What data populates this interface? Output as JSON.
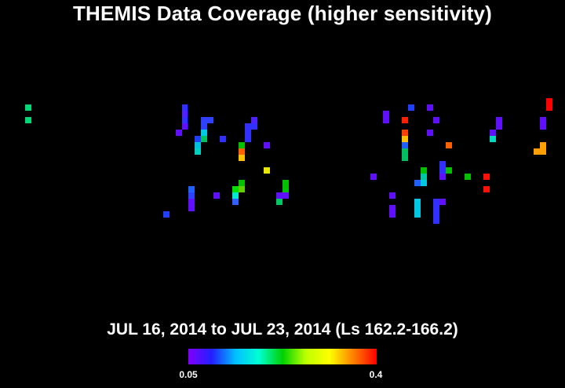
{
  "title": "THEMIS Data Coverage (higher sensitivity)",
  "subtitle": "JUL 16, 2014 to JUL 23, 2014 (Ls 162.2-166.2)",
  "colorbar": {
    "min_label": "0.05",
    "max_label": "0.4",
    "min_value": 0.05,
    "max_value": 0.4,
    "gradient": [
      "#8000ff",
      "#2020ff",
      "#00c0ff",
      "#00ffd0",
      "#00d000",
      "#c0ff00",
      "#ffff00",
      "#ff8000",
      "#ff0000"
    ]
  },
  "background_color": "#000000",
  "text_color": "#ffffff"
}
